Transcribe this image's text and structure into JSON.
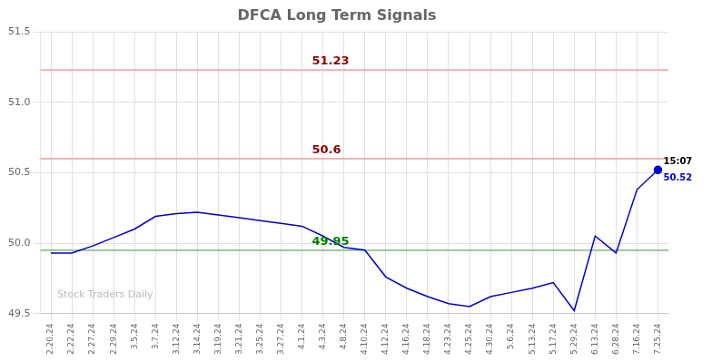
{
  "chart_data": {
    "type": "line",
    "title": "DFCA Long Term Signals",
    "categories": [
      "2.20.24",
      "2.22.24",
      "2.27.24",
      "2.29.24",
      "3.5.24",
      "3.7.24",
      "3.12.24",
      "3.14.24",
      "3.19.24",
      "3.21.24",
      "3.25.24",
      "3.27.24",
      "4.1.24",
      "4.3.24",
      "4.8.24",
      "4.10.24",
      "4.12.24",
      "4.16.24",
      "4.18.24",
      "4.23.24",
      "4.25.24",
      "4.30.24",
      "5.6.24",
      "5.13.24",
      "5.17.24",
      "5.29.24",
      "6.13.24",
      "6.28.24",
      "7.16.24",
      "7.25.24"
    ],
    "series": [
      {
        "color": "#0000cc",
        "marker": "none",
        "line_style": "solid",
        "values": [
          49.93,
          49.93,
          49.98,
          50.04,
          50.1,
          50.19,
          50.21,
          50.22,
          50.2,
          50.18,
          50.16,
          50.14,
          50.12,
          50.05,
          49.97,
          49.95,
          49.76,
          49.68,
          49.62,
          49.57,
          49.55,
          49.62,
          49.65,
          49.68,
          49.72,
          49.52,
          50.05,
          49.93,
          50.38,
          50.52
        ]
      },
      {
        "color": "#0000cc",
        "marker": "circle",
        "line_style": "none",
        "values": [
          null,
          null,
          null,
          null,
          null,
          null,
          null,
          null,
          null,
          null,
          null,
          null,
          null,
          null,
          null,
          null,
          null,
          null,
          null,
          null,
          null,
          null,
          null,
          null,
          null,
          null,
          null,
          null,
          null,
          50.52
        ]
      }
    ],
    "ylim": [
      49.5,
      51.5
    ],
    "yticks": [
      49.5,
      {
        "value": 50.0,
        "label": "50.0"
      },
      50.5,
      {
        "value": 51.0,
        "label": "51.0"
      },
      51.5
    ],
    "grid": true,
    "annotations": [
      {
        "type": "hline",
        "y": 51.23,
        "text": "51.23",
        "color": "#f4a9a8",
        "text_color": "#8b0000"
      },
      {
        "type": "hline",
        "y": 50.6,
        "text": "50.6",
        "color": "#f4a9a8",
        "text_color": "#8b0000"
      },
      {
        "type": "hline",
        "y": 49.95,
        "text": "49.95",
        "color": "#90c090",
        "text_color": "#008000"
      },
      {
        "type": "point_label",
        "x": "7.25.24",
        "y": 50.52,
        "text": "15:07",
        "color": "#000000"
      },
      {
        "type": "point_label",
        "x": "7.25.24",
        "y": 50.52,
        "text": "50.52",
        "color": "#0000cc"
      },
      {
        "type": "watermark",
        "y": 49.63,
        "text": "Stock Traders Daily",
        "color": "#bbbbbb"
      }
    ]
  }
}
